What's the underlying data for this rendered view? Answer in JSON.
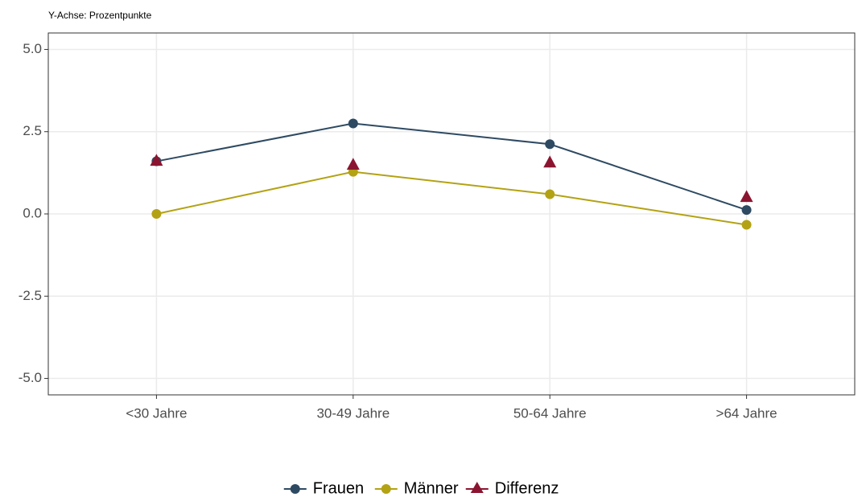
{
  "chart_data": {
    "type": "line",
    "subtitle": "Y-Achse: Prozentpunkte",
    "categories": [
      "<30 Jahre",
      "30-49 Jahre",
      "50-64 Jahre",
      ">64 Jahre"
    ],
    "series": [
      {
        "name": "Frauen",
        "color": "#2e4a62",
        "marker": "circle",
        "line": true,
        "values": [
          1.6,
          2.75,
          2.12,
          0.12
        ]
      },
      {
        "name": "Männer",
        "color": "#b3a214",
        "marker": "circle",
        "line": true,
        "values": [
          0,
          1.28,
          0.6,
          -0.33
        ]
      },
      {
        "name": "Differenz",
        "color": "#8b1530",
        "marker": "triangle",
        "line": false,
        "values": [
          1.6,
          1.48,
          1.55,
          0.5
        ]
      }
    ],
    "ylim": [
      -5.5,
      5.5
    ],
    "yticks": [
      {
        "value": -5,
        "label": "-5.0"
      },
      {
        "value": -2.5,
        "label": "-2.5"
      },
      {
        "value": 0,
        "label": "0.0"
      },
      {
        "value": 2.5,
        "label": "2.5"
      },
      {
        "value": 5,
        "label": "5.0"
      }
    ],
    "grid": true,
    "legend": "bottom"
  }
}
